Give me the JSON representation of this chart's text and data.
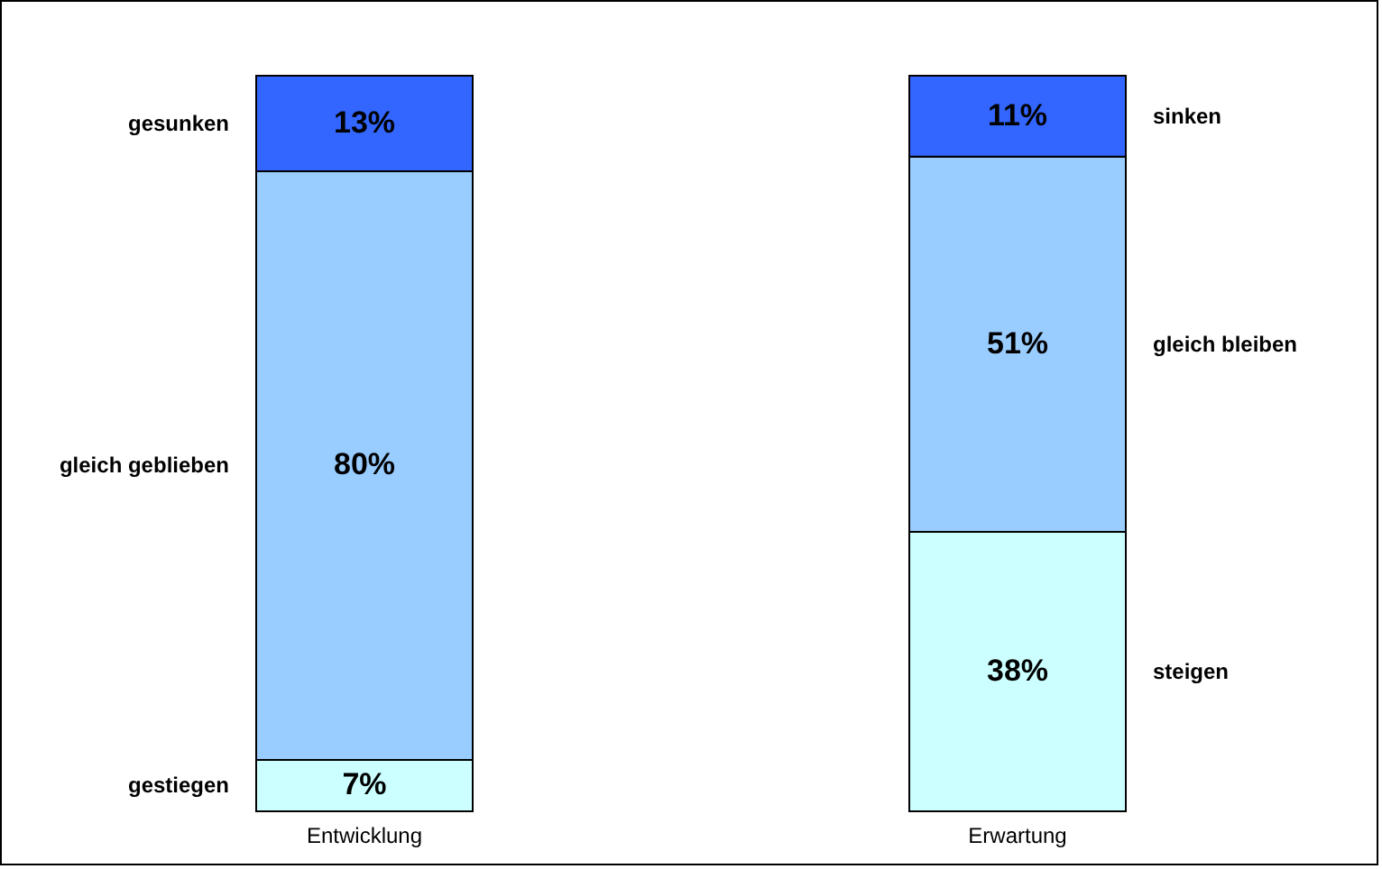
{
  "chart_data": {
    "type": "bar",
    "stacked": true,
    "tick_labels": "x",
    "categories": [
      "Entwicklung",
      "Erwartung"
    ],
    "series": [
      {
        "color": "#ccffff",
        "values": [
          7,
          38
        ],
        "value_labels": [
          "7%",
          "38%"
        ]
      },
      {
        "color": "#99ccff",
        "values": [
          80,
          51
        ],
        "value_labels": [
          "80%",
          "51%"
        ]
      },
      {
        "color": "#3366ff",
        "values": [
          13,
          11
        ],
        "value_labels": [
          "13%",
          "11%"
        ]
      }
    ],
    "annotations": [
      "gestiegen",
      "gleich geblieben",
      "gesunken",
      "steigen",
      "gleich bleiben",
      "sinken"
    ]
  }
}
